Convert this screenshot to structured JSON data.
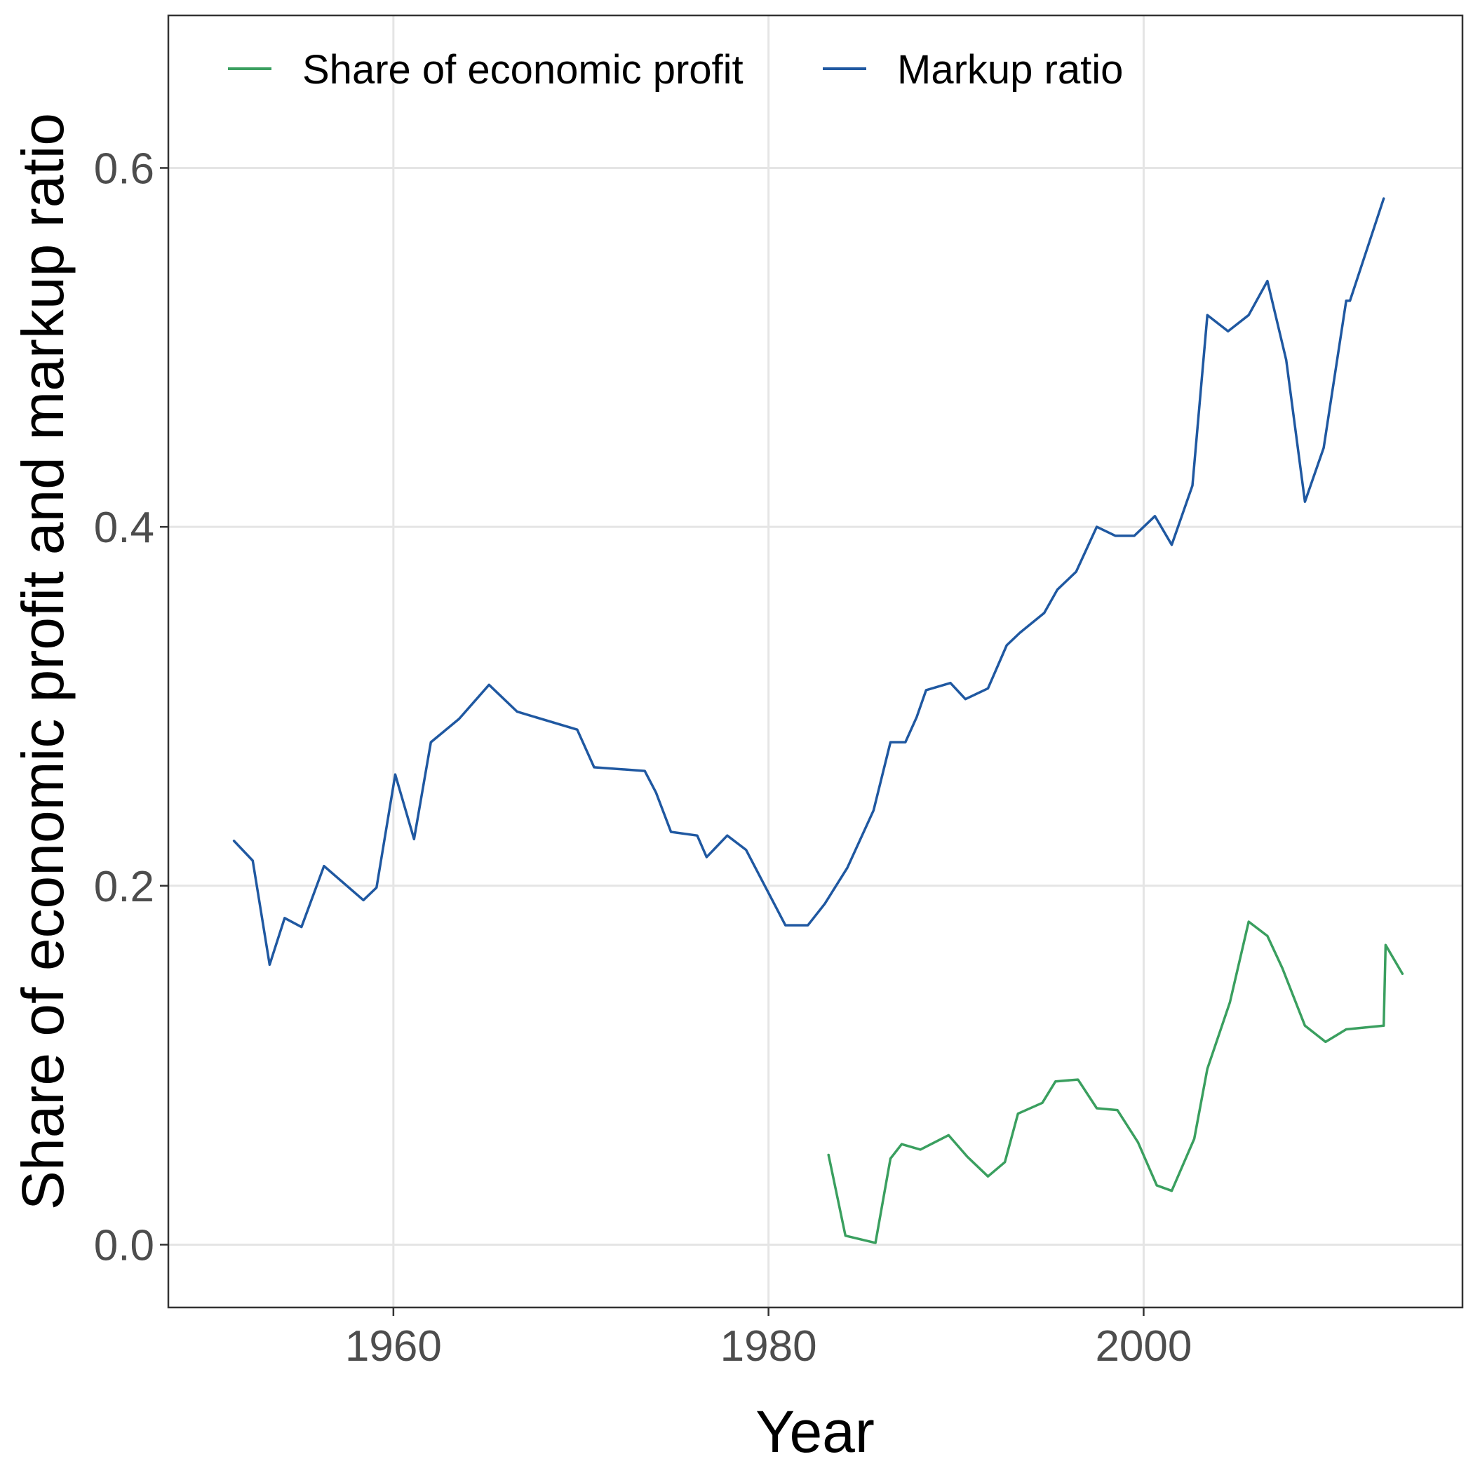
{
  "chart_data": {
    "type": "line",
    "title": "",
    "xlabel": "Year",
    "ylabel": "Share of economic profit and markup ratio",
    "xlim": [
      1948,
      2017
    ],
    "ylim": [
      -0.035,
      0.685
    ],
    "x_ticks": [
      1960,
      1980,
      2000
    ],
    "y_ticks": [
      0.0,
      0.2,
      0.4,
      0.6
    ],
    "x_tick_labels": [
      "1960",
      "1980",
      "2000"
    ],
    "y_tick_labels": [
      "0.0",
      "0.2",
      "0.4",
      "0.6"
    ],
    "grid": true,
    "legend_position": "top",
    "series": [
      {
        "name": "Share of economic profit",
        "color": "#3a9f5f",
        "x": [
          1983.2,
          1984.1,
          1985.7,
          1986.5,
          1987.1,
          1988.1,
          1989.6,
          1990.6,
          1991.7,
          1992.6,
          1993.3,
          1994.6,
          1995.3,
          1996.5,
          1997.5,
          1998.6,
          1999.7,
          2000.7,
          2001.5,
          2002.7,
          2003.4,
          2004.6,
          2005.6,
          2006.6,
          2007.4,
          2008.6,
          2009.7,
          2010.8,
          2012.8,
          2012.9,
          2013.8
        ],
        "values": [
          0.05,
          0.005,
          0.001,
          0.048,
          0.056,
          0.053,
          0.061,
          0.049,
          0.038,
          0.046,
          0.073,
          0.079,
          0.091,
          0.092,
          0.076,
          0.075,
          0.057,
          0.033,
          0.03,
          0.059,
          0.098,
          0.135,
          0.18,
          0.172,
          0.154,
          0.122,
          0.113,
          0.12,
          0.122,
          0.167,
          0.151
        ]
      },
      {
        "name": "Markup ratio",
        "color": "#1f58a1",
        "x": [
          1951.5,
          1952.5,
          1953.4,
          1954.2,
          1955.1,
          1956.3,
          1958.4,
          1959.1,
          1960.1,
          1961.1,
          1962.0,
          1963.5,
          1965.1,
          1966.6,
          1969.8,
          1970.7,
          1973.4,
          1974.0,
          1974.8,
          1976.2,
          1976.7,
          1977.8,
          1978.8,
          1979.9,
          1980.9,
          1982.1,
          1983.0,
          1984.2,
          1985.6,
          1986.5,
          1987.3,
          1987.9,
          1988.4,
          1989.7,
          1990.5,
          1991.7,
          1992.7,
          1993.4,
          1994.7,
          1995.4,
          1996.4,
          1997.5,
          1998.5,
          1999.5,
          2000.6,
          2001.5,
          2002.6,
          2003.4,
          2004.5,
          2005.6,
          2006.6,
          2007.6,
          2008.6,
          2009.6,
          2010.8,
          2011.0,
          2012.8
        ],
        "values": [
          0.225,
          0.214,
          0.156,
          0.182,
          0.177,
          0.211,
          0.192,
          0.199,
          0.262,
          0.226,
          0.28,
          0.293,
          0.312,
          0.297,
          0.287,
          0.266,
          0.264,
          0.252,
          0.23,
          0.228,
          0.216,
          0.228,
          0.22,
          0.198,
          0.178,
          0.178,
          0.19,
          0.21,
          0.242,
          0.28,
          0.28,
          0.294,
          0.309,
          0.313,
          0.304,
          0.31,
          0.334,
          0.341,
          0.352,
          0.365,
          0.375,
          0.4,
          0.395,
          0.395,
          0.406,
          0.39,
          0.423,
          0.518,
          0.509,
          0.518,
          0.537,
          0.493,
          0.414,
          0.444,
          0.526,
          0.526,
          0.583
        ]
      }
    ]
  }
}
